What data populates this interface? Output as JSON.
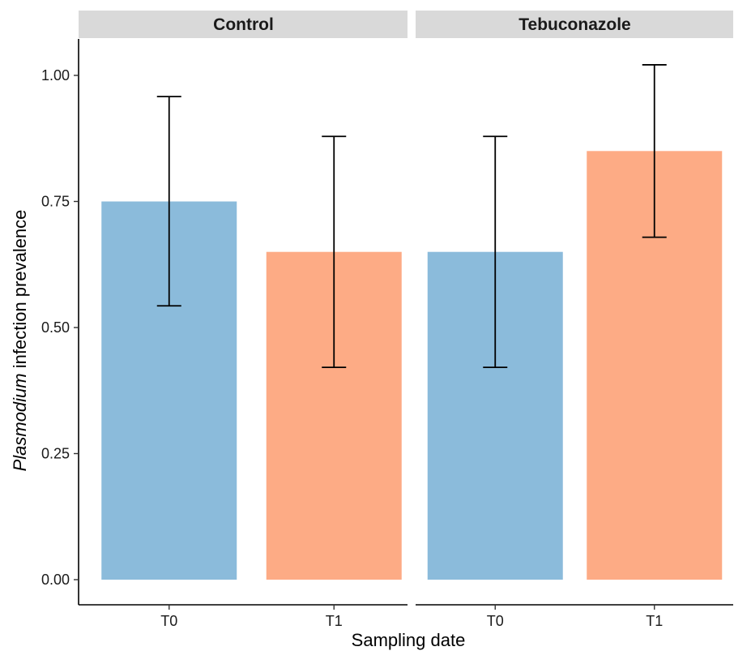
{
  "chart_data": {
    "type": "bar",
    "facets": [
      {
        "label": "Control",
        "categories": [
          "T0",
          "T1"
        ],
        "values": [
          0.75,
          0.65
        ],
        "error_low": [
          0.543,
          0.421
        ],
        "error_high": [
          0.958,
          0.879
        ]
      },
      {
        "label": "Tebuconazole",
        "categories": [
          "T0",
          "T1"
        ],
        "values": [
          0.65,
          0.85
        ],
        "error_low": [
          0.421,
          0.679
        ],
        "error_high": [
          0.879,
          1.021
        ]
      }
    ],
    "bar_colors": {
      "T0": "#8bbbdb",
      "T1": "#fdab85"
    },
    "xlabel": "Sampling date",
    "ylabel_italic": "Plasmodium",
    "ylabel_rest": " infection prevalence",
    "ylim": [
      0,
      1.05
    ],
    "yticks": [
      0.0,
      0.25,
      0.5,
      0.75,
      1.0
    ],
    "ytick_labels": [
      "0.00",
      "0.25",
      "0.50",
      "0.75",
      "1.00"
    ],
    "grid": false,
    "legend": "none"
  }
}
